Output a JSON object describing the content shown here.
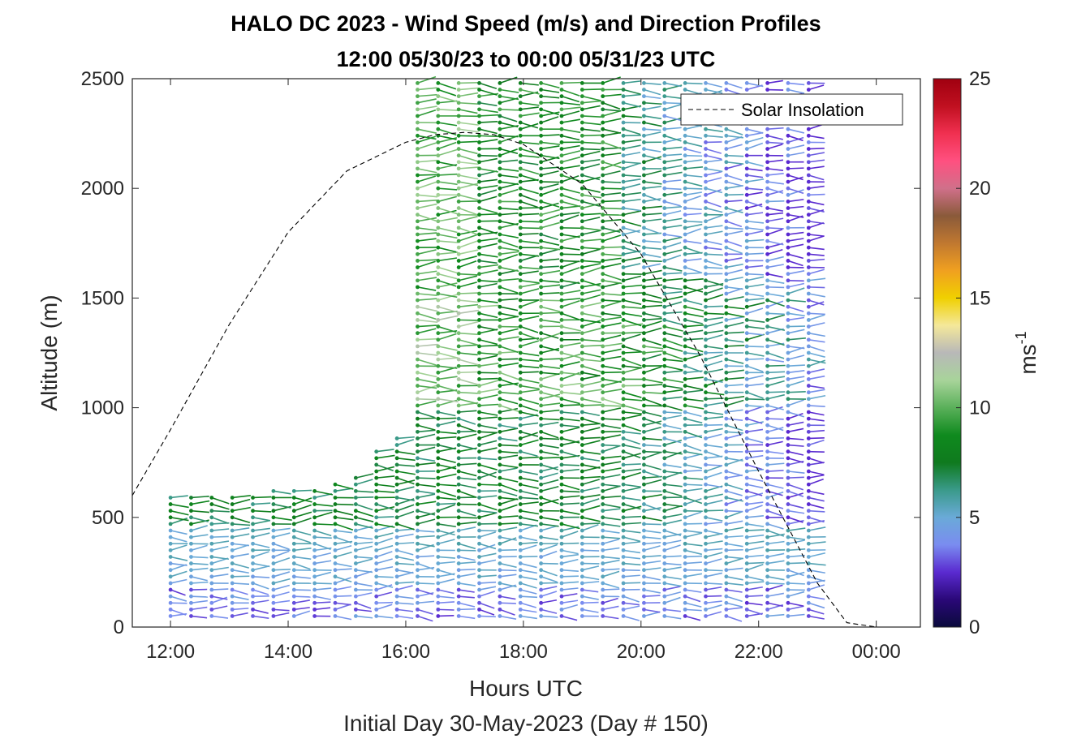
{
  "chart_data": {
    "type": "scatter",
    "title": "HALO DC 2023 - Wind Speed (m/s) and Direction Profiles",
    "subtitle": "12:00 05/30/23 to 00:00 05/31/23  UTC",
    "xlabel": "Hours UTC",
    "xlabel2": "Initial Day 30-May-2023 (Day # 150)",
    "ylabel": "Altitude (m)",
    "xlim": [
      11.35,
      24.75
    ],
    "ylim": [
      0,
      2500
    ],
    "xticks": [
      {
        "v": 12,
        "label": "12:00"
      },
      {
        "v": 14,
        "label": "14:00"
      },
      {
        "v": 16,
        "label": "16:00"
      },
      {
        "v": 18,
        "label": "18:00"
      },
      {
        "v": 20,
        "label": "20:00"
      },
      {
        "v": 22,
        "label": "22:00"
      },
      {
        "v": 24,
        "label": "00:00"
      }
    ],
    "yticks": [
      0,
      500,
      1000,
      1500,
      2000,
      2500
    ],
    "legend": {
      "label": "Solar Insolation",
      "position": "top-right",
      "style": "dashed black"
    },
    "colorbar": {
      "label": "ms",
      "label_sup": "-1",
      "range": [
        0,
        25
      ],
      "ticks": [
        0,
        5,
        10,
        15,
        20,
        25
      ],
      "colormap": [
        "#0a0a3c",
        "#2a0878",
        "#5a2ad0",
        "#7a8cf0",
        "#6aaad8",
        "#3a9a8a",
        "#0f7a1e",
        "#0f8a1e",
        "#5ab05a",
        "#a8d49a",
        "#b8b8b8",
        "#f4e89a",
        "#f0d000",
        "#f0a020",
        "#c07830",
        "#8a5a3a",
        "#d0708a",
        "#ff5080",
        "#f03050",
        "#c01020",
        "#a00010"
      ]
    },
    "barbs": {
      "times_h": [
        12.0,
        12.35,
        12.7,
        13.05,
        13.4,
        13.75,
        14.1,
        14.45,
        14.8,
        15.15,
        15.5,
        15.85,
        16.2,
        16.55,
        16.9,
        17.25,
        17.6,
        17.95,
        18.3,
        18.65,
        19.0,
        19.35,
        19.7,
        20.05,
        20.4,
        20.75,
        21.1,
        21.45,
        21.8,
        22.15,
        22.5,
        22.85
      ],
      "top_m": [
        590,
        590,
        590,
        600,
        610,
        620,
        640,
        640,
        660,
        680,
        820,
        860,
        2490,
        2490,
        2490,
        2490,
        2490,
        2490,
        2490,
        2490,
        2490,
        2490,
        2490,
        2490,
        2490,
        2490,
        2490,
        2490,
        2490,
        2490,
        2490,
        2490
      ],
      "bottom_m": 50,
      "spacing_m": 30,
      "direction_deg_range": [
        250,
        290
      ],
      "speed_ms_range": [
        2,
        12
      ]
    },
    "solar_insolation": {
      "x": [
        11.35,
        12.0,
        13.0,
        14.0,
        15.0,
        16.0,
        16.5,
        17.0,
        17.5,
        18.0,
        19.0,
        20.0,
        21.0,
        22.0,
        23.0,
        23.5,
        24.0,
        24.1,
        24.7
      ],
      "y": [
        600,
        900,
        1380,
        1800,
        2080,
        2210,
        2245,
        2255,
        2245,
        2200,
        2020,
        1700,
        1240,
        710,
        200,
        20,
        0,
        0,
        0
      ]
    }
  }
}
